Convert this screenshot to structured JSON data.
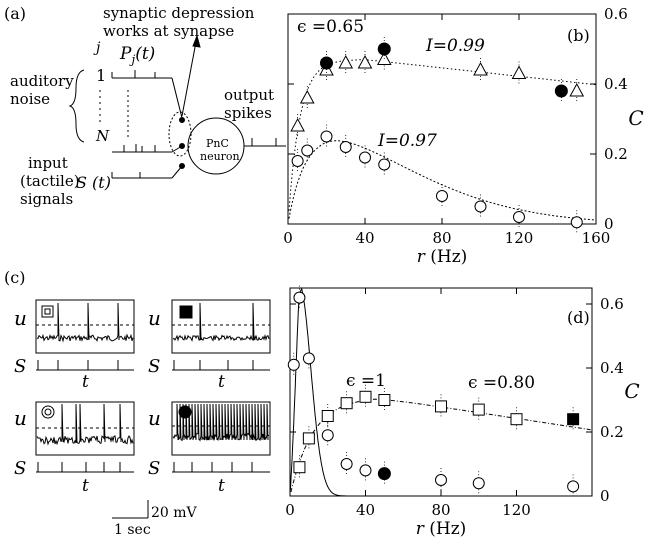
{
  "panel_labels": {
    "a": "(a)",
    "b": "(b)",
    "c": "(c)",
    "d": "(d)"
  },
  "diagram_a": {
    "synaptic_line1": "synaptic depression",
    "synaptic_line2": "works at synapse",
    "j": "j",
    "pj": "P",
    "pj_sub": "j",
    "pj_arg": "(t)",
    "one": "1",
    "n": "N",
    "auditory1": "auditory",
    "auditory2": "noise",
    "input1": "input",
    "input2": "(tactile)",
    "input3": "signals",
    "st": "S (t)",
    "neuron1": "PnC",
    "neuron2": "neuron",
    "output1": "output",
    "output2": "spikes"
  },
  "panel_c": {
    "u": "u",
    "s": "S",
    "t": "t",
    "scale_v": "20 mV",
    "scale_t": "1 sec"
  },
  "chart_data": [
    {
      "type": "scatter",
      "panel": "b",
      "xlabel": "r (Hz)",
      "ylabel": "C",
      "xlim": [
        0,
        160
      ],
      "ylim": [
        0,
        0.6
      ],
      "xticks": [
        0,
        40,
        80,
        120,
        160
      ],
      "yticks": [
        0,
        0.2,
        0.4,
        0.6
      ],
      "annotations": {
        "eps": "ϵ =0.65",
        "i_top": "I=0.99",
        "i_bot": "I=0.97"
      },
      "series": [
        {
          "name": "I=0.99 triangles",
          "marker": "triangle-open",
          "x": [
            5,
            10,
            20,
            30,
            40,
            50,
            100,
            120,
            150
          ],
          "y": [
            0.28,
            0.36,
            0.44,
            0.46,
            0.46,
            0.47,
            0.44,
            0.43,
            0.38
          ]
        },
        {
          "name": "I=0.99 filled",
          "marker": "circle-filled",
          "x": [
            20,
            50,
            142
          ],
          "y": [
            0.46,
            0.5,
            0.38
          ]
        },
        {
          "name": "I=0.97 circles",
          "marker": "circle-open",
          "x": [
            5,
            10,
            20,
            30,
            40,
            50,
            80,
            100,
            120,
            150
          ],
          "y": [
            0.18,
            0.21,
            0.25,
            0.22,
            0.19,
            0.17,
            0.08,
            0.05,
            0.02,
            0.005
          ]
        }
      ]
    },
    {
      "type": "scatter",
      "panel": "d",
      "xlabel": "r (Hz)",
      "ylabel": "C",
      "xlim": [
        0,
        160
      ],
      "ylim": [
        0,
        0.65
      ],
      "xticks": [
        0,
        40,
        80,
        120
      ],
      "yticks": [
        0,
        0.2,
        0.4,
        0.6
      ],
      "annotations": {
        "eps1": "ϵ =1",
        "eps2": "ϵ =0.80"
      },
      "series": [
        {
          "name": "eps=1 circles",
          "marker": "circle-open",
          "x": [
            2,
            5,
            10,
            20,
            30,
            40,
            80,
            100,
            150
          ],
          "y": [
            0.41,
            0.62,
            0.43,
            0.19,
            0.1,
            0.08,
            0.05,
            0.04,
            0.03
          ]
        },
        {
          "name": "eps=1 filled",
          "marker": "circle-filled",
          "x": [
            50
          ],
          "y": [
            0.07
          ]
        },
        {
          "name": "eps=0.80 squares",
          "marker": "square-open",
          "x": [
            5,
            10,
            20,
            30,
            40,
            50,
            80,
            100,
            120
          ],
          "y": [
            0.09,
            0.18,
            0.25,
            0.29,
            0.31,
            0.3,
            0.28,
            0.27,
            0.24
          ]
        },
        {
          "name": "eps=0.80 filled",
          "marker": "square-filled",
          "x": [
            150
          ],
          "y": [
            0.24
          ]
        }
      ]
    }
  ]
}
